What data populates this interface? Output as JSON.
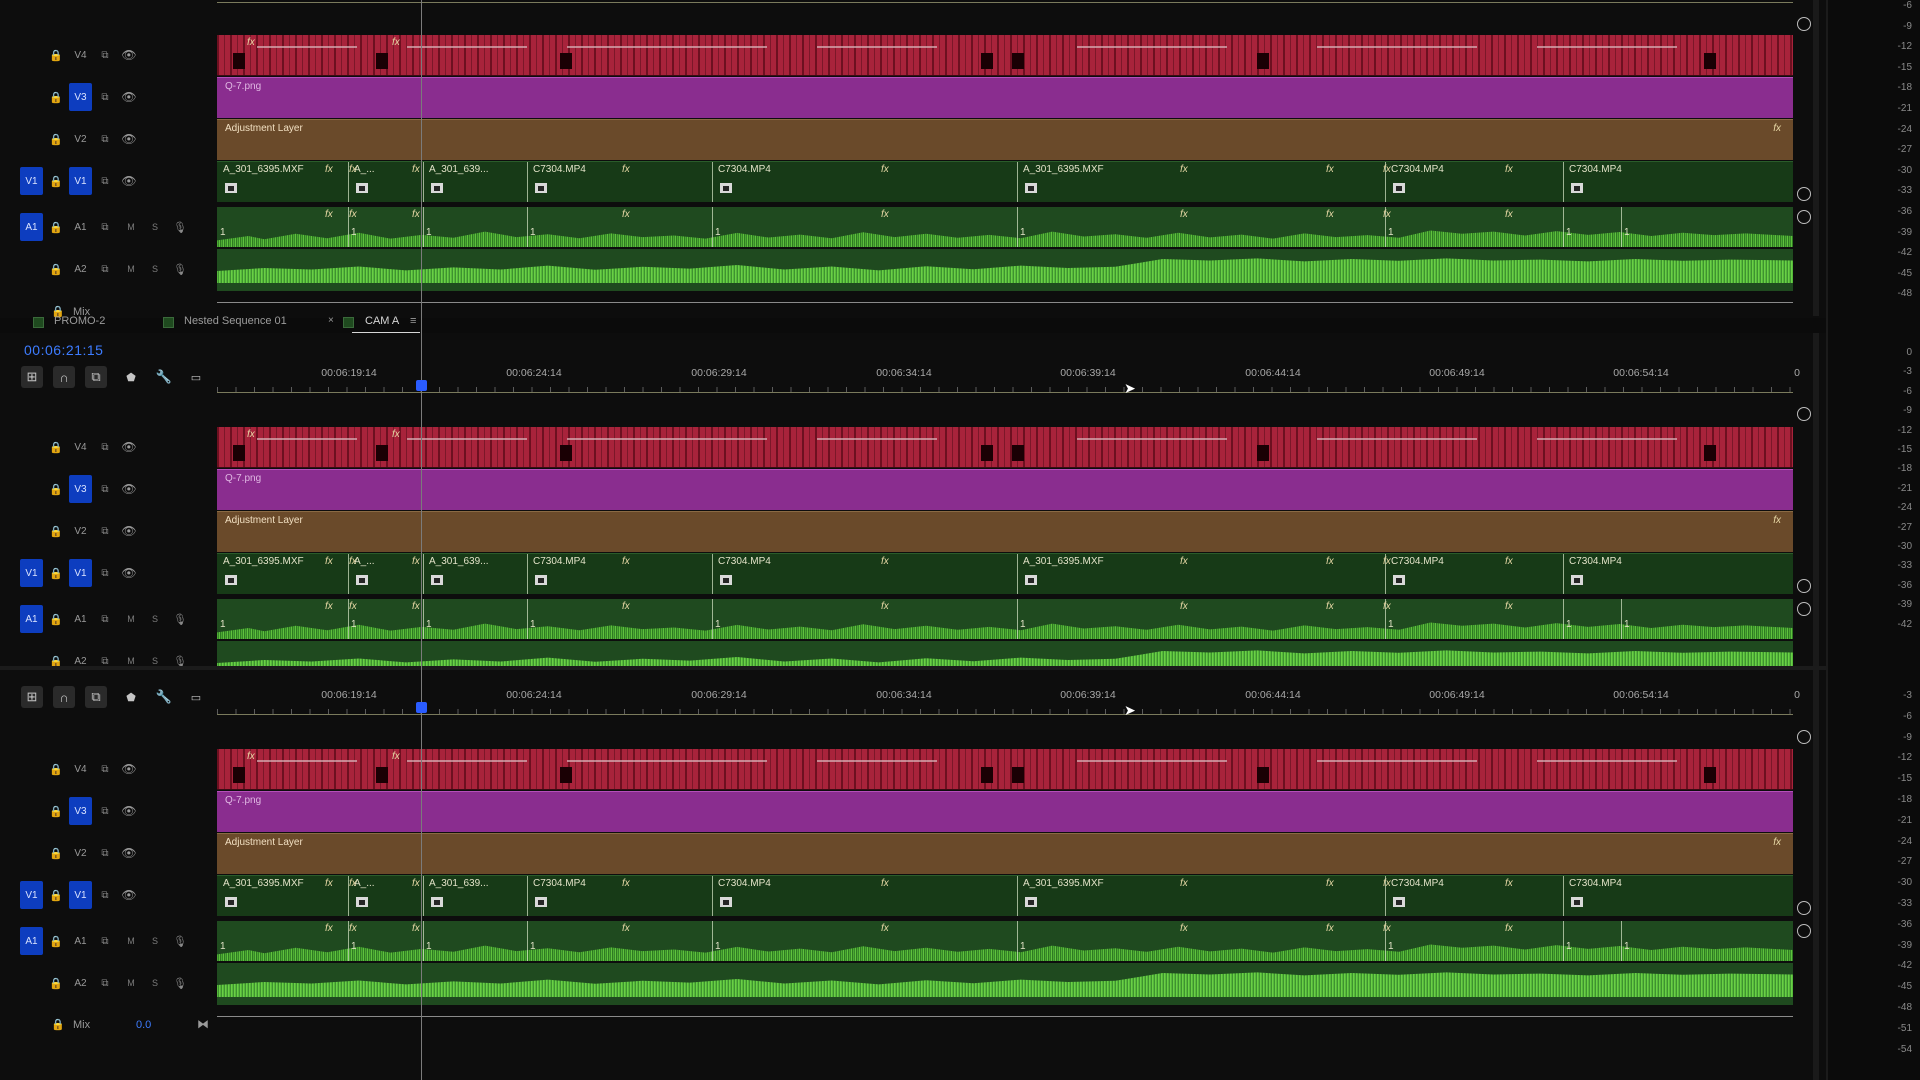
{
  "timecode": "00:06:21:15",
  "tabs": [
    {
      "label": "PROMO-2"
    },
    {
      "label": "Nested Sequence 01"
    },
    {
      "label": "CAM A",
      "close": "×",
      "menu": "≡"
    }
  ],
  "ruler_labels": [
    "00:06:19:14",
    "00:06:24:14",
    "00:06:29:14",
    "00:06:34:14",
    "00:06:39:14",
    "00:06:44:14",
    "00:06:49:14",
    "00:06:54:14",
    "0"
  ],
  "tracks": {
    "v4": "V4",
    "v3": "V3",
    "v2": "V2",
    "v1": "V1",
    "a1": "A1",
    "a2": "A2",
    "m": "M",
    "s": "S",
    "mix": "Mix",
    "mix_value": "0.0"
  },
  "clips": {
    "v3_name": "Q-7.png",
    "v2_name": "Adjustment Layer",
    "v1": [
      "A_301_6395.MXF",
      "A_...",
      "A_301_639...",
      "C7304.MP4",
      "C7304.MP4",
      "A_301_6395.MXF",
      "C7304.MP4",
      "C7304.MP4"
    ],
    "a1_marker": "1",
    "fx": "fx"
  },
  "meter_top": [
    "-6",
    "-9",
    "-12",
    "-15",
    "-18",
    "-21",
    "-24",
    "-27",
    "-30",
    "-33",
    "-36",
    "-39",
    "-42",
    "-45",
    "-48"
  ],
  "meter_mid": [
    "0",
    "-3",
    "-6",
    "-9",
    "-12",
    "-15",
    "-18",
    "-21",
    "-24",
    "-27",
    "-30",
    "-33",
    "-36",
    "-39",
    "-42"
  ],
  "meter_bot": [
    "-3",
    "-6",
    "-9",
    "-12",
    "-15",
    "-18",
    "-21",
    "-24",
    "-27",
    "-30",
    "-33",
    "-36",
    "-39",
    "-42",
    "-45",
    "-48",
    "-51",
    "-54"
  ],
  "tools": {
    "insert": "insert-icon",
    "snap": "magnet-icon",
    "linked": "linked-selection-icon",
    "marker": "marker-icon",
    "wrench": "wrench-icon",
    "captions": "captions-icon"
  },
  "colors": {
    "v4": "#a8233b",
    "v3": "#8a2d8f",
    "v2": "#6a4a2a",
    "v1": "#173a17",
    "audio": "#1f4a1f",
    "target": "#0d3dbf",
    "playhead": "#2a5cff"
  }
}
